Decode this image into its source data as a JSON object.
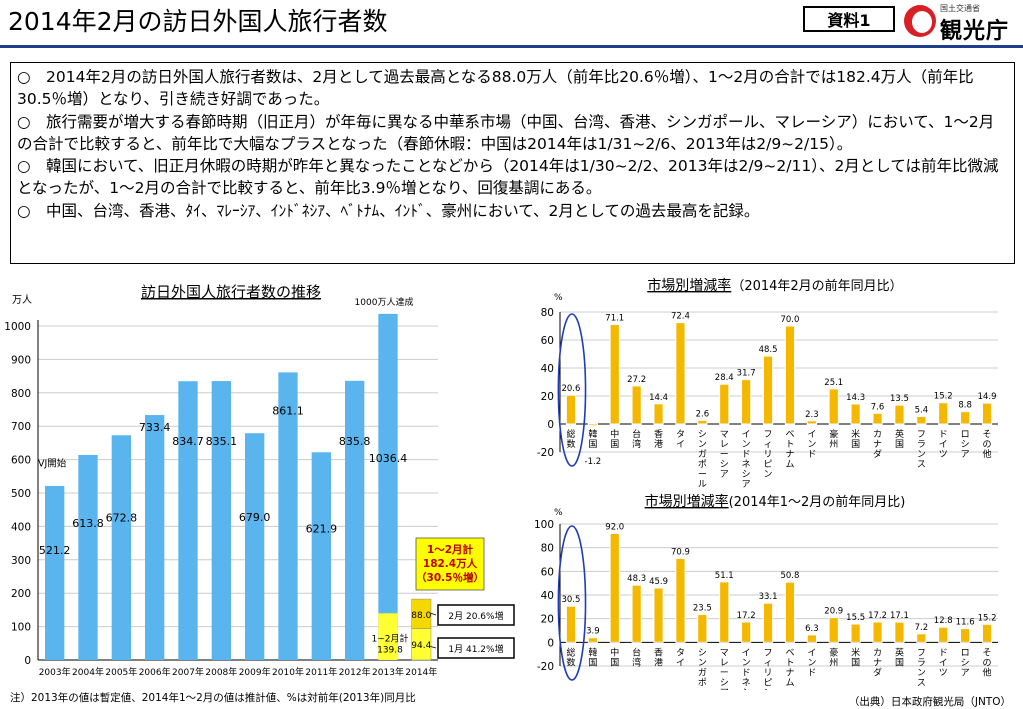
{
  "header": {
    "title": "2014年2月の訪日外国人旅行者数",
    "doc_tag": "資料1",
    "logo_sub": "国土交通省",
    "logo_main": "観光庁"
  },
  "summary": {
    "paragraphs": [
      "○　2014年2月の訪日外国人旅行者数は、2月として過去最高となる88.0万人（前年比20.6％増）、1～2月の合計では182.4万人（前年比30.5％増）となり、引き続き好調であった。",
      "○　旅行需要が増大する春節時期（旧正月）が年毎に異なる中華系市場（中国、台湾、香港、シンガポール、マレーシア）において、1～2月の合計で比較すると、前年比で大幅なプラスとなった（春節休暇：中国は2014年は1/31~2/6、2013年は2/9~2/15）。",
      "○　韓国において、旧正月休暇の時期が昨年と異なったことなどから（2014年は1/30~2/2、2013年は2/9~2/11）、2月としては前年比微減となったが、1～2月の合計で比較すると、前年比3.9％増となり、回復基調にある。",
      "○　中国、台湾、香港、ﾀｲ、ﾏﾚｰｼｱ、ｲﾝﾄﾞﾈｼｱ、ﾍﾞﾄﾅﾑ、ｲﾝﾄﾞ、豪州において、2月としての過去最高を記録。"
    ]
  },
  "footer": {
    "note": "注）2013年の値は暫定値、2014年1～2月の値は推計値、%は対前年(2013年)同月比",
    "source": "（出典）日本政府観光局（JNTO）"
  },
  "colors": {
    "bar": "#5ab4ee",
    "market_bar": "#f5b800",
    "bar_2014_feb": "#f5d800",
    "bar_2014_jan": "#ffff33",
    "accent": "#1f3d8c",
    "ellipse": "#1f3db8"
  },
  "chart_data": [
    {
      "type": "bar",
      "title": "訪日外国人旅行者数の推移",
      "ylabel": "万人",
      "ylim": [
        0,
        1000
      ],
      "yticks": [
        0,
        100,
        200,
        300,
        400,
        500,
        600,
        700,
        800,
        900,
        1000
      ],
      "categories": [
        "2003年",
        "2004年",
        "2005年",
        "2006年",
        "2007年",
        "2008年",
        "2009年",
        "2010年",
        "2011年",
        "2012年",
        "2013年",
        "2014年"
      ],
      "values": [
        521.2,
        613.8,
        672.8,
        733.4,
        834.7,
        835.1,
        679.0,
        861.1,
        621.9,
        835.8,
        1036.4,
        null
      ],
      "value_labels": [
        "521.2",
        "613.8",
        "672.8",
        "733.4",
        "834.7",
        "835.1",
        "679.0",
        "861.1",
        "621.9",
        "835.8",
        "1036.4",
        ""
      ],
      "stack_2013_jan_feb": {
        "value": 139.8,
        "label": "1~2月計",
        "value_label": "139.8"
      },
      "stack_2014": [
        {
          "name": "1月",
          "value": 94.4,
          "label": "94.4"
        },
        {
          "name": "2月",
          "value": 88.0,
          "label": "88.0"
        }
      ],
      "annotations": {
        "vj_start": "VJ開始",
        "over_10m": "1000万人達成",
        "total_box": [
          "1～2月計",
          "182.4万人",
          "（30.5％増）"
        ],
        "feb_box": "2月  20.6%増",
        "jan_box": "1月  41.2%増"
      }
    },
    {
      "type": "bar",
      "title": "市場別増減率",
      "subtitle": "（2014年2月の前年同月比）",
      "ylabel": "%",
      "ylim": [
        -20,
        80
      ],
      "yticks": [
        -20,
        0,
        20,
        40,
        60,
        80
      ],
      "categories": [
        "総数",
        "韓国",
        "中国",
        "台湾",
        "香港",
        "タイ",
        "シンガポール",
        "マレーシア",
        "インドネシア",
        "フィリピン",
        "ベトナム",
        "インド",
        "豪州",
        "米国",
        "カナダ",
        "英国",
        "フランス",
        "ドイツ",
        "ロシア",
        "その他"
      ],
      "values": [
        20.6,
        -1.2,
        71.1,
        27.2,
        14.4,
        72.4,
        2.6,
        28.4,
        31.7,
        48.5,
        70.0,
        2.3,
        25.1,
        14.3,
        7.6,
        13.5,
        5.4,
        15.2,
        8.8,
        14.9
      ],
      "value_labels": [
        "20.6",
        "-1.2",
        "71.1",
        "27.2",
        "14.4",
        "72.4",
        "2.6",
        "28.4",
        "31.7",
        "48.5",
        "70.0",
        "2.3",
        "25.1",
        "14.3",
        "7.6",
        "13.5",
        "5.4",
        "15.2",
        "8.8",
        "14.9"
      ]
    },
    {
      "type": "bar",
      "title": "市場別増減率",
      "subtitle": "(2014年1～2月の前年同月比)",
      "ylabel": "%",
      "ylim": [
        -20,
        100
      ],
      "yticks": [
        -20,
        0,
        20,
        40,
        60,
        80,
        100
      ],
      "categories": [
        "総数",
        "韓国",
        "中国",
        "台湾",
        "香港",
        "タイ",
        "シンガポール",
        "マレーシア",
        "インドネシア",
        "フィリピン",
        "ベトナム",
        "インド",
        "豪州",
        "米国",
        "カナダ",
        "英国",
        "フランス",
        "ドイツ",
        "ロシア",
        "その他"
      ],
      "values": [
        30.5,
        3.9,
        92.0,
        48.3,
        45.9,
        70.9,
        23.5,
        51.1,
        17.2,
        33.1,
        50.8,
        6.3,
        20.9,
        15.5,
        17.2,
        17.1,
        7.2,
        12.8,
        11.6,
        15.2
      ],
      "value_labels": [
        "30.5",
        "3.9",
        "92.0",
        "48.3",
        "45.9",
        "70.9",
        "23.5",
        "51.1",
        "17.2",
        "33.1",
        "50.8",
        "6.3",
        "20.9",
        "15.5",
        "17.2",
        "17.1",
        "7.2",
        "12.8",
        "11.6",
        "15.2"
      ]
    }
  ]
}
